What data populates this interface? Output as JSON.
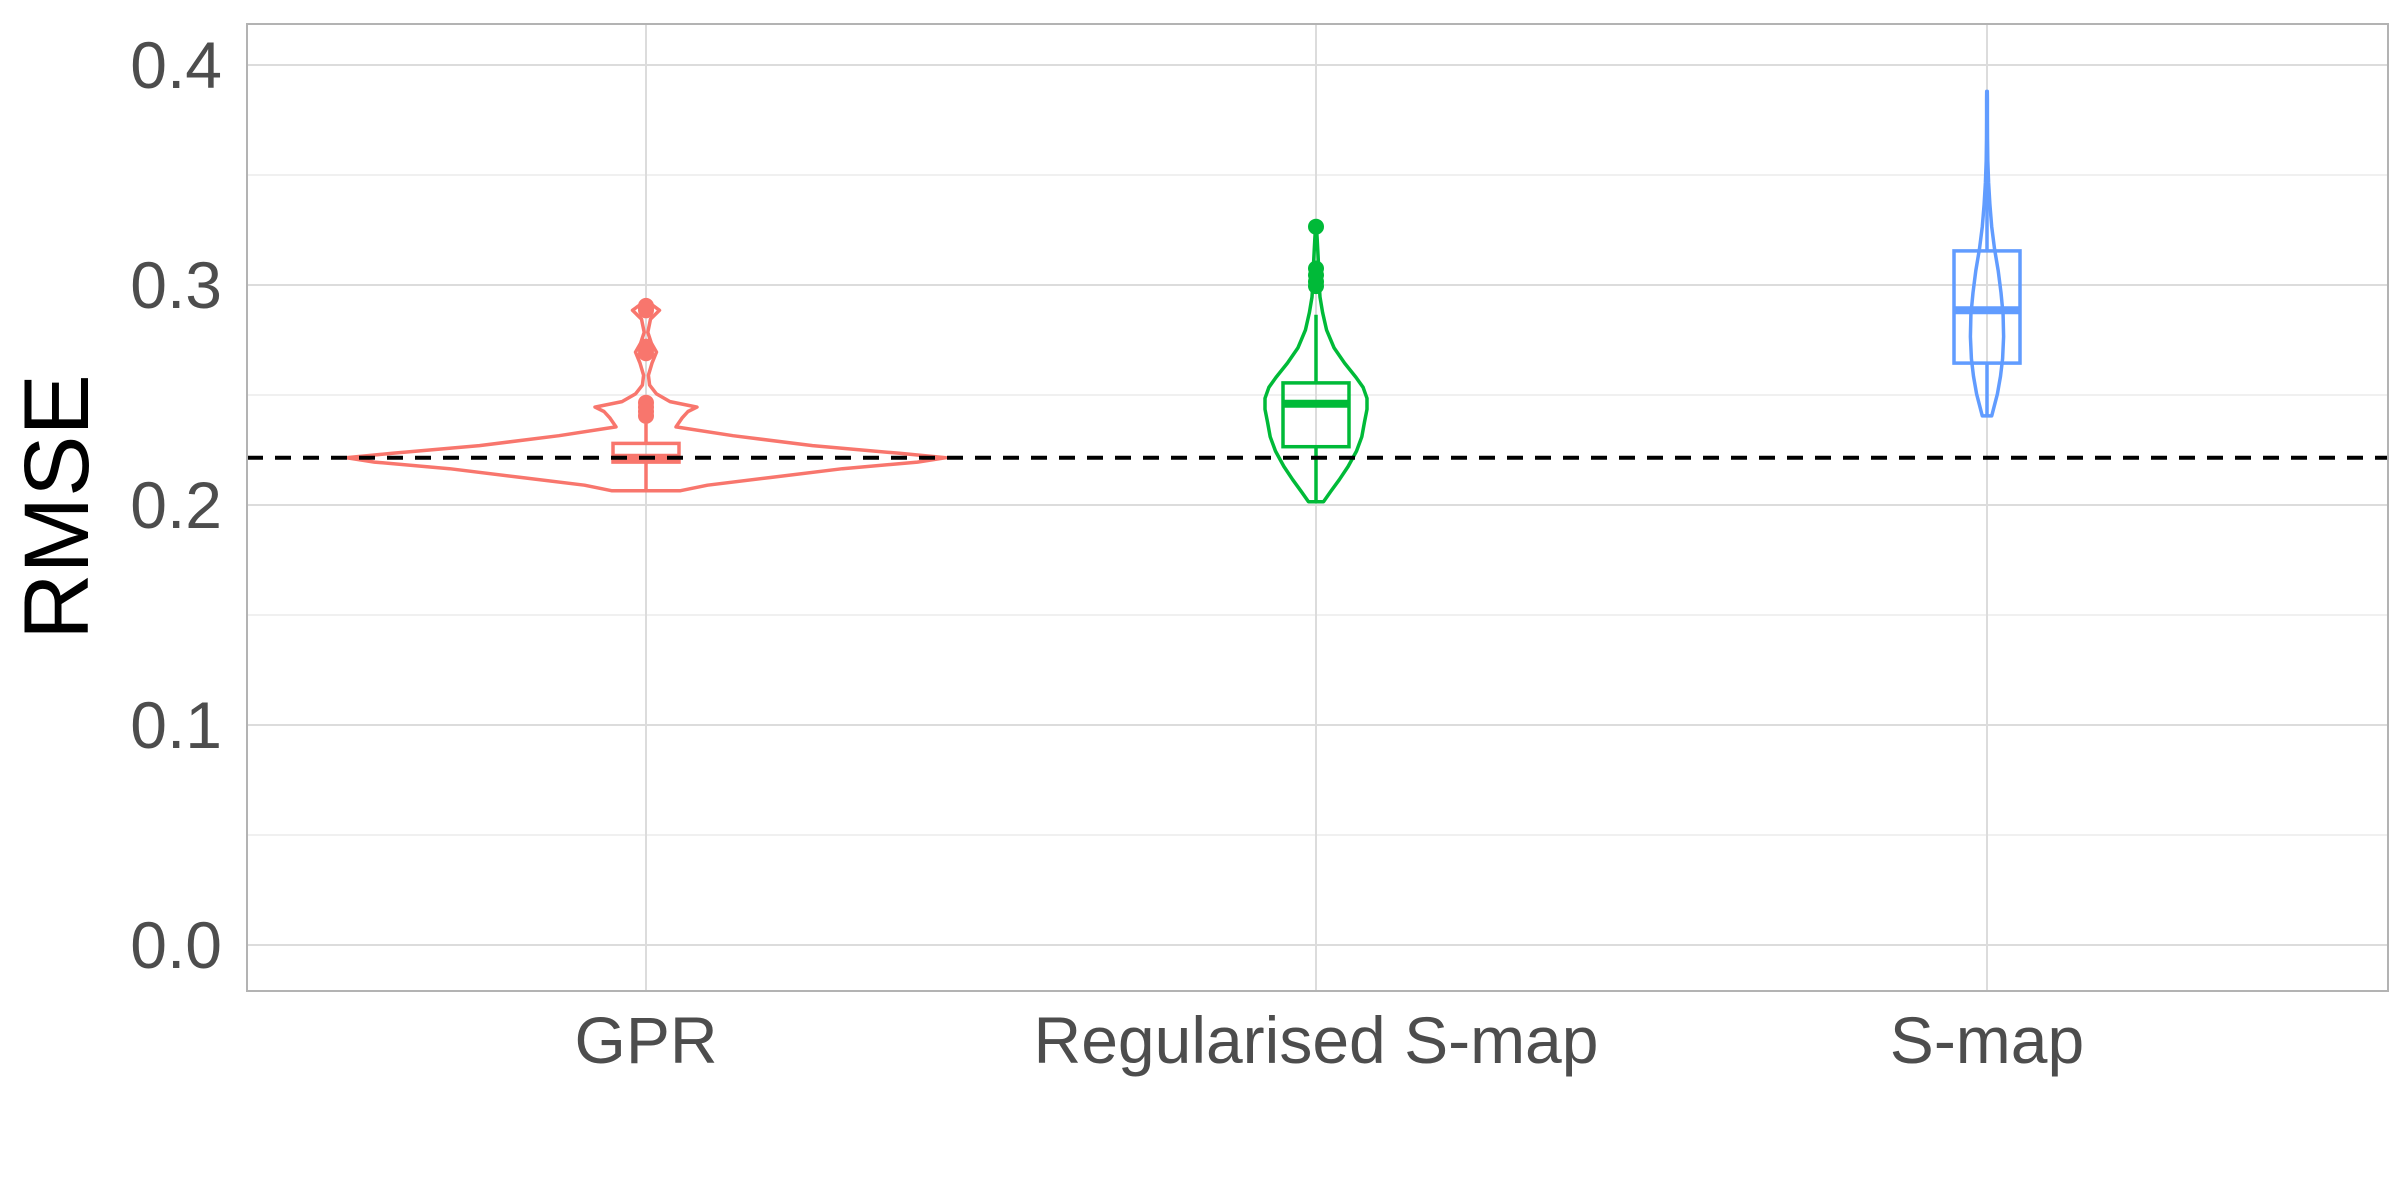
{
  "chart_data": {
    "type": "violin",
    "title": "",
    "xlabel": "",
    "ylabel": "RMSE",
    "ylim": [
      -0.019,
      0.42
    ],
    "y_ticks": [
      "0.0",
      "0.1",
      "0.2",
      "0.3",
      "0.4"
    ],
    "grid": true,
    "legend": "none",
    "reference_line": {
      "y": 0.2215,
      "style": "dashed",
      "color": "#000000"
    },
    "categories": [
      "GPR",
      "Regularised S-map",
      "S-map"
    ],
    "series": [
      {
        "color": "#f8766d",
        "box": {
          "q1": 0.2195,
          "median": 0.2215,
          "q3": 0.228,
          "whisker_low": 0.2065,
          "whisker_high": 0.237
        },
        "outliers": [
          0.2905,
          0.2895,
          0.2885,
          0.272,
          0.2705,
          0.269,
          0.2465,
          0.2445,
          0.2425,
          0.2405
        ],
        "density": [
          [
            0.2065,
            0.115
          ],
          [
            0.209,
            0.205
          ],
          [
            0.2125,
            0.415
          ],
          [
            0.2165,
            0.655
          ],
          [
            0.2195,
            0.905
          ],
          [
            0.2215,
            1.0
          ],
          [
            0.2235,
            0.845
          ],
          [
            0.227,
            0.555
          ],
          [
            0.2315,
            0.29
          ],
          [
            0.2355,
            0.1
          ],
          [
            0.2395,
            0.12
          ],
          [
            0.2425,
            0.14
          ],
          [
            0.2445,
            0.17
          ],
          [
            0.247,
            0.08
          ],
          [
            0.2505,
            0.035
          ],
          [
            0.2545,
            0.012
          ],
          [
            0.259,
            0.008
          ],
          [
            0.2645,
            0.02
          ],
          [
            0.2695,
            0.035
          ],
          [
            0.2735,
            0.018
          ],
          [
            0.2785,
            0.006
          ],
          [
            0.2845,
            0.015
          ],
          [
            0.2885,
            0.045
          ],
          [
            0.2905,
            0.025
          ],
          [
            0.2915,
            0.008
          ]
        ]
      },
      {
        "color": "#00ba38",
        "box": {
          "q1": 0.2265,
          "median": 0.246,
          "q3": 0.2555,
          "whisker_low": 0.2015,
          "whisker_high": 0.2865
        },
        "outliers": [
          0.3265,
          0.3075,
          0.3045,
          0.3015,
          0.2995
        ],
        "density": [
          [
            0.2015,
            0.085
          ],
          [
            0.206,
            0.165
          ],
          [
            0.2115,
            0.265
          ],
          [
            0.2175,
            0.365
          ],
          [
            0.2245,
            0.46
          ],
          [
            0.231,
            0.52
          ],
          [
            0.2375,
            0.55
          ],
          [
            0.2435,
            0.58
          ],
          [
            0.2485,
            0.58
          ],
          [
            0.2535,
            0.535
          ],
          [
            0.258,
            0.455
          ],
          [
            0.2645,
            0.325
          ],
          [
            0.2715,
            0.205
          ],
          [
            0.2795,
            0.12
          ],
          [
            0.2875,
            0.075
          ],
          [
            0.2945,
            0.045
          ],
          [
            0.301,
            0.035
          ],
          [
            0.3085,
            0.03
          ],
          [
            0.3155,
            0.02
          ],
          [
            0.3215,
            0.012
          ],
          [
            0.3265,
            0.004
          ]
        ]
      },
      {
        "color": "#619cff",
        "box": {
          "q1": 0.2645,
          "median": 0.2885,
          "q3": 0.3155,
          "whisker_low": 0.2405,
          "whisker_high": 0.388
        },
        "outliers": [],
        "density": [
          [
            0.2405,
            0.09
          ],
          [
            0.2445,
            0.135
          ],
          [
            0.2505,
            0.2
          ],
          [
            0.2585,
            0.26
          ],
          [
            0.2665,
            0.3
          ],
          [
            0.2765,
            0.32
          ],
          [
            0.2865,
            0.31
          ],
          [
            0.2965,
            0.27
          ],
          [
            0.3065,
            0.215
          ],
          [
            0.3165,
            0.145
          ],
          [
            0.3265,
            0.09
          ],
          [
            0.3365,
            0.055
          ],
          [
            0.3465,
            0.03
          ],
          [
            0.3565,
            0.015
          ],
          [
            0.3665,
            0.01
          ],
          [
            0.3765,
            0.008
          ],
          [
            0.3845,
            0.008
          ],
          [
            0.388,
            0.006
          ]
        ]
      }
    ]
  }
}
